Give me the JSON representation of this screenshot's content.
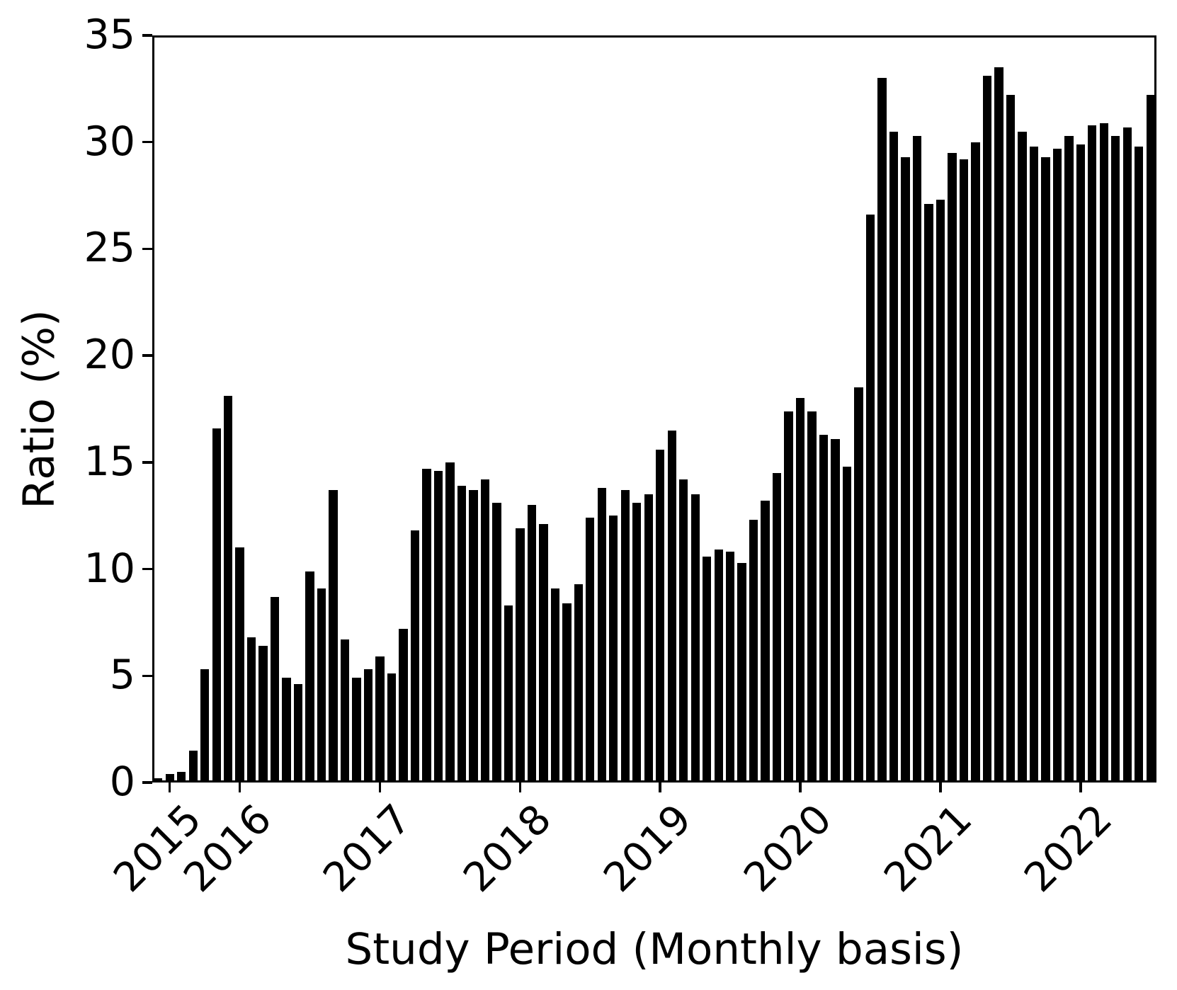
{
  "figure": {
    "background": "#ffffff",
    "axis_color": "#000000"
  },
  "chart_data": {
    "type": "bar",
    "title": "",
    "xlabel": "Study Period (Monthly basis)",
    "ylabel": "Ratio (%)",
    "ylim": [
      0,
      35
    ],
    "yticks": [
      0,
      5,
      10,
      15,
      20,
      25,
      30,
      35
    ],
    "grid": false,
    "legend": null,
    "bar_color": "#000000",
    "bar_width_fraction": 0.75,
    "x_months": [
      "2015-06",
      "2015-07",
      "2015-08",
      "2015-09",
      "2015-10",
      "2015-11",
      "2015-12",
      "2016-01",
      "2016-02",
      "2016-03",
      "2016-04",
      "2016-05",
      "2016-06",
      "2016-07",
      "2016-08",
      "2016-09",
      "2016-10",
      "2016-11",
      "2016-12",
      "2017-01",
      "2017-02",
      "2017-03",
      "2017-04",
      "2017-05",
      "2017-06",
      "2017-07",
      "2017-08",
      "2017-09",
      "2017-10",
      "2017-11",
      "2017-12",
      "2018-01",
      "2018-02",
      "2018-03",
      "2018-04",
      "2018-05",
      "2018-06",
      "2018-07",
      "2018-08",
      "2018-09",
      "2018-10",
      "2018-11",
      "2018-12",
      "2019-01",
      "2019-02",
      "2019-03",
      "2019-04",
      "2019-05",
      "2019-06",
      "2019-07",
      "2019-08",
      "2019-09",
      "2019-10",
      "2019-11",
      "2019-12",
      "2020-01",
      "2020-02",
      "2020-03",
      "2020-04",
      "2020-05",
      "2020-06",
      "2020-07",
      "2020-08",
      "2020-09",
      "2020-10",
      "2020-11",
      "2020-12",
      "2021-01",
      "2021-02",
      "2021-03",
      "2021-04",
      "2021-05",
      "2021-06",
      "2021-07",
      "2021-08",
      "2021-09",
      "2021-10",
      "2021-11",
      "2021-12",
      "2022-01",
      "2022-02",
      "2022-03",
      "2022-04",
      "2022-05",
      "2022-06",
      "2022-07"
    ],
    "values": [
      0.1,
      0.3,
      0.4,
      1.4,
      5.2,
      16.5,
      18.0,
      10.9,
      6.7,
      6.3,
      8.6,
      4.8,
      4.5,
      9.8,
      9.0,
      13.6,
      6.6,
      4.8,
      5.2,
      5.8,
      5.0,
      7.1,
      11.7,
      14.6,
      14.5,
      14.9,
      13.8,
      13.6,
      14.1,
      13.0,
      8.2,
      11.8,
      12.9,
      12.0,
      9.0,
      8.3,
      9.2,
      12.3,
      13.7,
      12.4,
      13.6,
      13.0,
      13.4,
      15.5,
      16.4,
      14.1,
      13.4,
      10.5,
      10.8,
      10.7,
      10.2,
      12.2,
      13.1,
      14.4,
      17.3,
      17.9,
      17.3,
      16.2,
      16.0,
      14.7,
      18.4,
      26.5,
      32.9,
      30.4,
      29.2,
      30.2,
      27.0,
      27.2,
      29.4,
      29.1,
      29.9,
      33.0,
      33.4,
      32.1,
      30.4,
      29.7,
      29.2,
      29.6,
      30.2,
      29.8,
      30.7,
      30.8,
      30.2,
      30.6,
      29.7,
      32.1
    ],
    "xticks": [
      {
        "label": "2015",
        "index": 1
      },
      {
        "label": "2016",
        "index": 7
      },
      {
        "label": "2017",
        "index": 19
      },
      {
        "label": "2018",
        "index": 31
      },
      {
        "label": "2019",
        "index": 43
      },
      {
        "label": "2020",
        "index": 55
      },
      {
        "label": "2021",
        "index": 67
      },
      {
        "label": "2022",
        "index": 79
      }
    ]
  }
}
